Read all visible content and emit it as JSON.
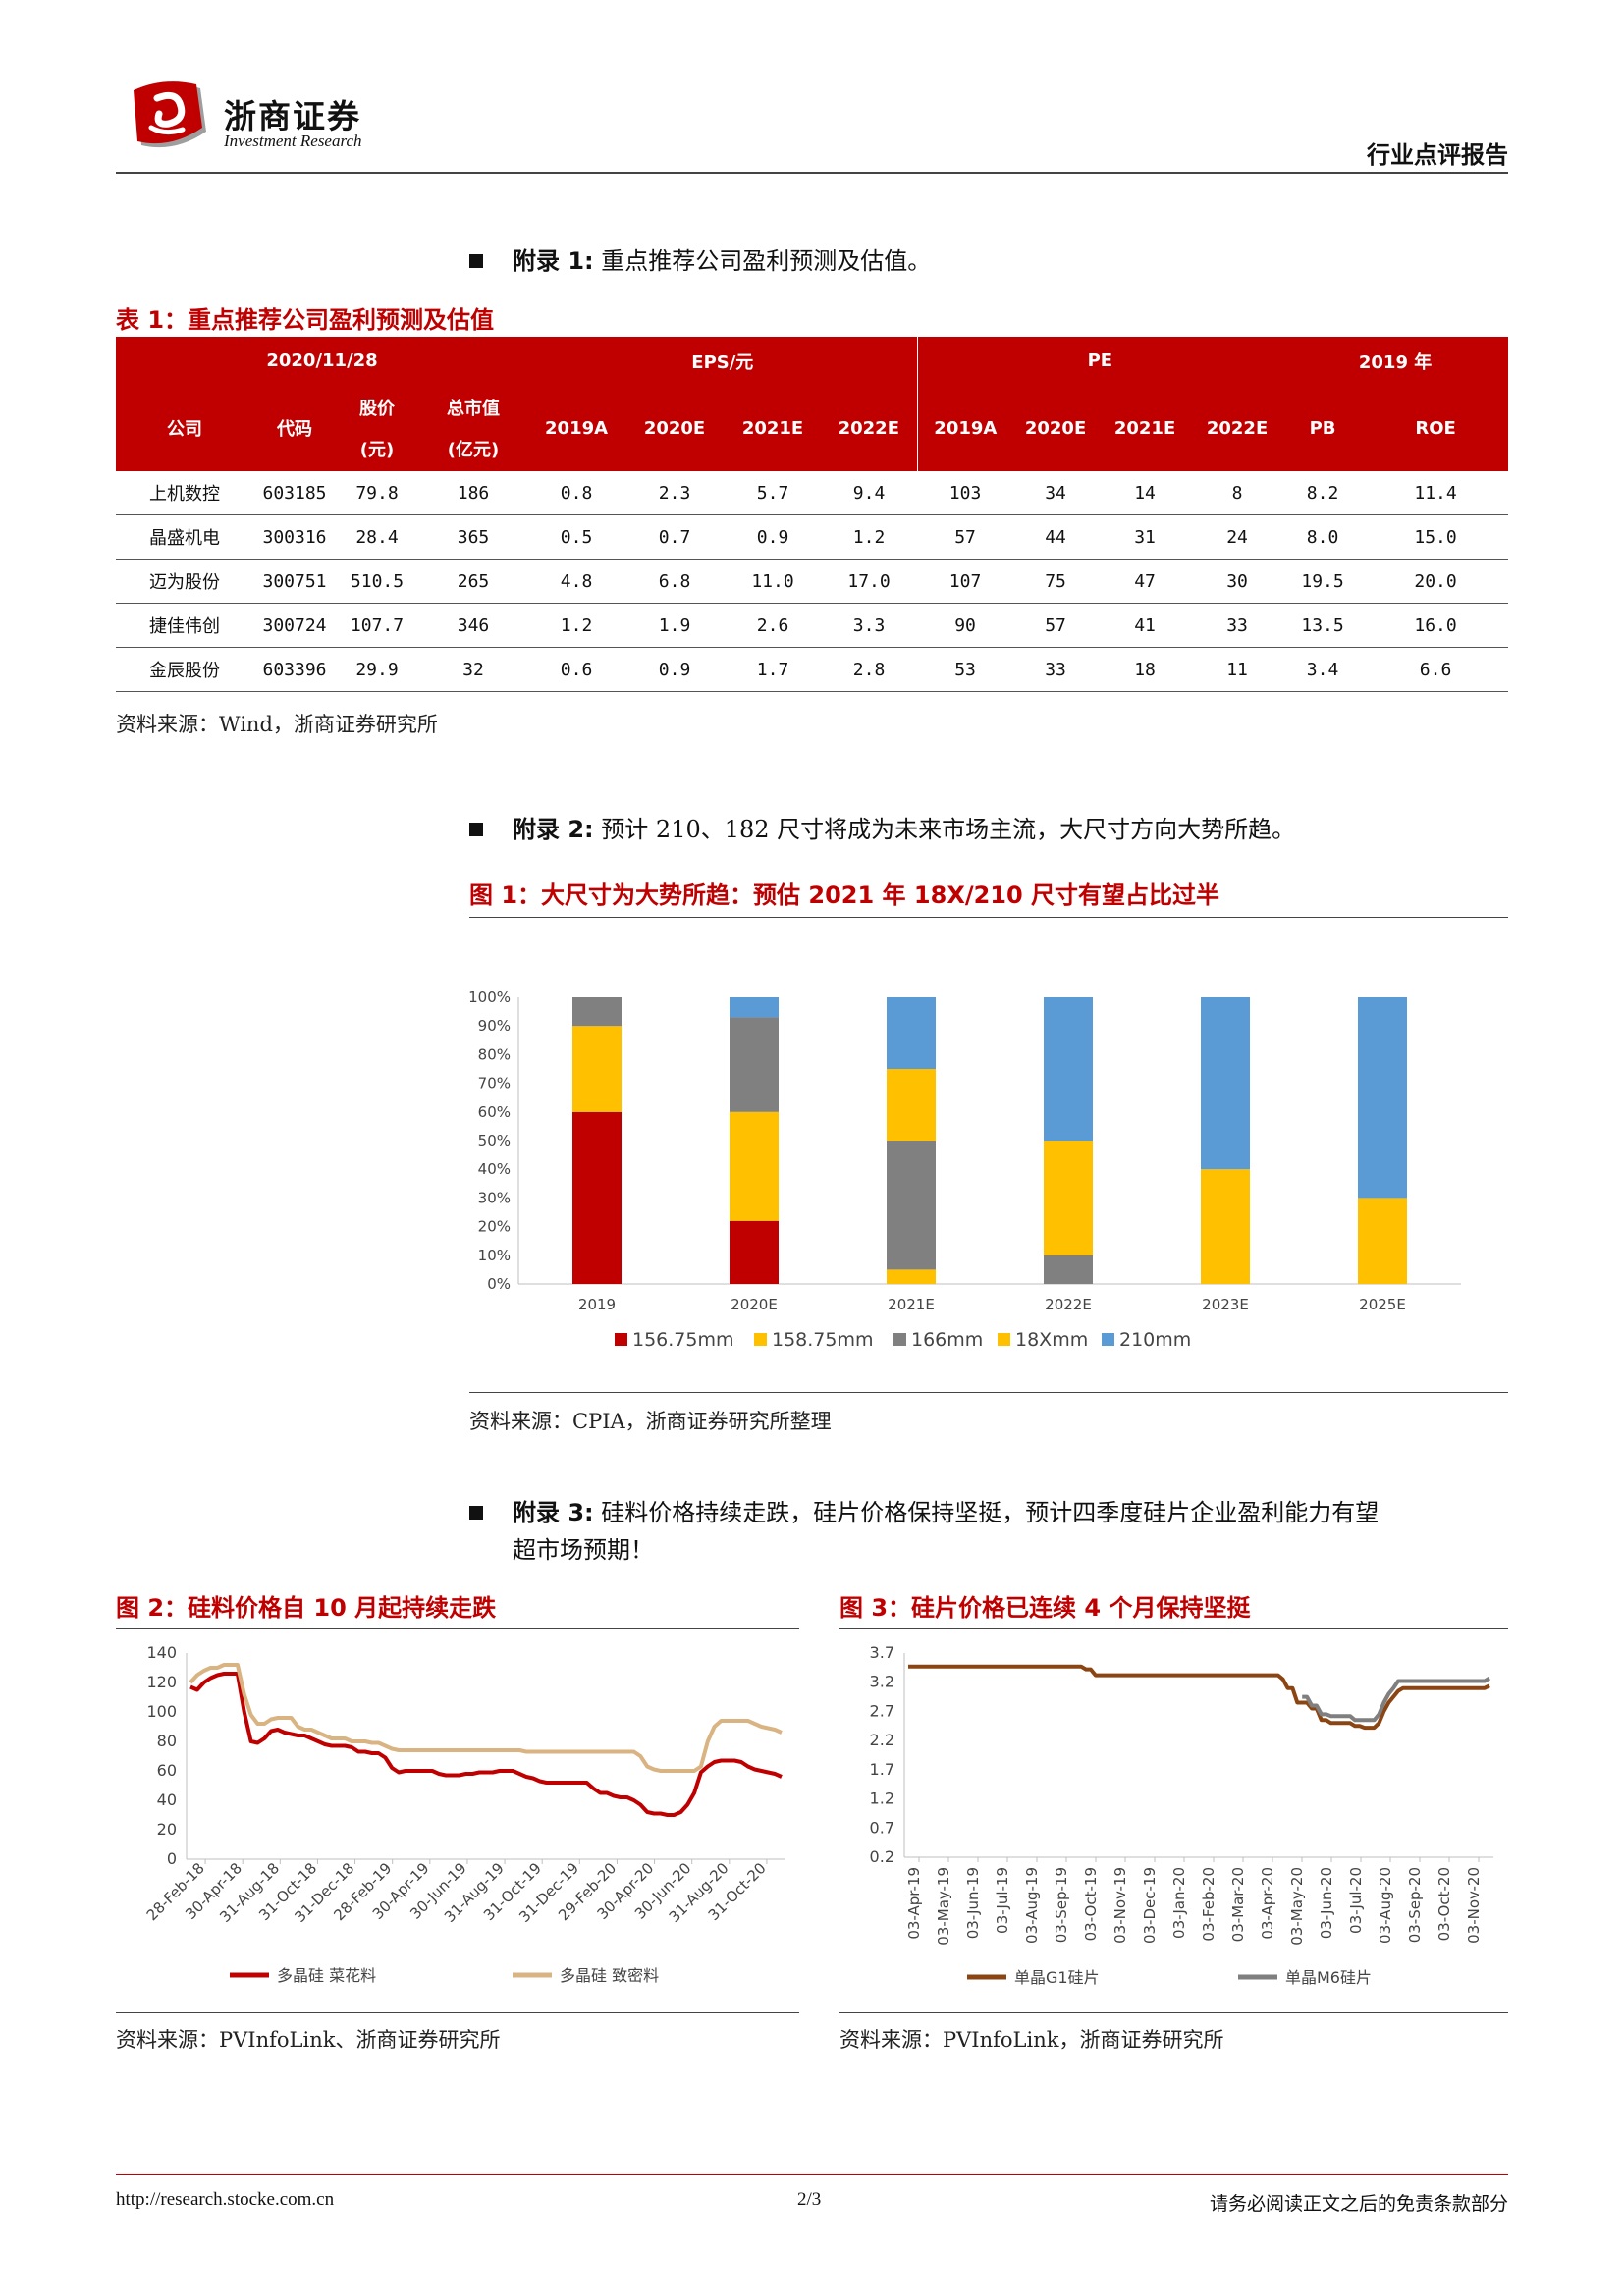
{
  "header": {
    "brand_cn": "浙商证券",
    "brand_en": "Investment Research",
    "doc_type": "行业点评报告"
  },
  "appendix1": {
    "label": "附录 1:",
    "text": "重点推荐公司盈利预测及估值。",
    "caption": "表 1：重点推荐公司盈利预测及估值",
    "source": "资料来源：Wind，浙商证券研究所",
    "table": {
      "group_date": "2020/11/28",
      "group_eps": "EPS/元",
      "group_pe": "PE",
      "group_2019": "2019 年",
      "cols": [
        "公司",
        "代码",
        "股价",
        "(元)",
        "总市值",
        "(亿元)",
        "2019A",
        "2020E",
        "2021E",
        "2022E",
        "2019A",
        "2020E",
        "2021E",
        "2022E",
        "PB",
        "ROE"
      ],
      "rows": [
        [
          "上机数控",
          "603185",
          "79.8",
          "186",
          "0.8",
          "2.3",
          "5.7",
          "9.4",
          "103",
          "34",
          "14",
          "8",
          "8.2",
          "11.4"
        ],
        [
          "晶盛机电",
          "300316",
          "28.4",
          "365",
          "0.5",
          "0.7",
          "0.9",
          "1.2",
          "57",
          "44",
          "31",
          "24",
          "8.0",
          "15.0"
        ],
        [
          "迈为股份",
          "300751",
          "510.5",
          "265",
          "4.8",
          "6.8",
          "11.0",
          "17.0",
          "107",
          "75",
          "47",
          "30",
          "19.5",
          "20.0"
        ],
        [
          "捷佳伟创",
          "300724",
          "107.7",
          "346",
          "1.2",
          "1.9",
          "2.6",
          "3.3",
          "90",
          "57",
          "41",
          "33",
          "13.5",
          "16.0"
        ],
        [
          "金辰股份",
          "603396",
          "29.9",
          "32",
          "0.6",
          "0.9",
          "1.7",
          "2.8",
          "53",
          "33",
          "18",
          "11",
          "3.4",
          "6.6"
        ]
      ]
    }
  },
  "appendix2": {
    "label": "附录 2:",
    "text": "预计 210、182 尺寸将成为未来市场主流，大尺寸方向大势所趋。",
    "caption": "图 1：大尺寸为大势所趋：预估 2021 年 18X/210 尺寸有望占比过半",
    "source": "资料来源：CPIA，浙商证券研究所整理"
  },
  "appendix3": {
    "label": "附录 3:",
    "text1": "硅料价格持续走跌，硅片价格保持坚挺，预计四季度硅片企业盈利能力有望",
    "text2": "超市场预期！",
    "caption_left": "图 2：硅料价格自 10 月起持续走跌",
    "caption_right": "图 3：硅片价格已连续 4 个月保持坚挺",
    "source_left": "资料来源：PVInfoLink、浙商证券研究所",
    "source_right": "资料来源：PVInfoLink，浙商证券研究所"
  },
  "chart_data": [
    {
      "type": "bar",
      "stacked": true,
      "categories": [
        "2019",
        "2020E",
        "2021E",
        "2022E",
        "2023E",
        "2025E"
      ],
      "y_ticks": [
        "0%",
        "10%",
        "20%",
        "30%",
        "40%",
        "50%",
        "60%",
        "70%",
        "80%",
        "90%",
        "100%"
      ],
      "ylim": [
        0,
        100
      ],
      "legend_position": "bottom",
      "series": [
        {
          "name": "156.75mm",
          "color": "#c00000",
          "values": [
            60,
            22,
            0,
            0,
            0,
            0
          ]
        },
        {
          "name": "158.75mm",
          "color": "#ffc000",
          "values": [
            30,
            38,
            5,
            0,
            0,
            0
          ]
        },
        {
          "name": "166mm",
          "color": "#808080",
          "values": [
            10,
            33,
            45,
            10,
            0,
            0
          ]
        },
        {
          "name": "18Xmm",
          "color": "#ffc000",
          "values": [
            0,
            0,
            25,
            40,
            40,
            30
          ]
        },
        {
          "name": "210mm",
          "color": "#5b9bd5",
          "values": [
            0,
            7,
            25,
            50,
            60,
            70
          ]
        }
      ]
    },
    {
      "type": "line",
      "ylim": [
        0,
        140
      ],
      "y_ticks": [
        "0",
        "20",
        "40",
        "60",
        "80",
        "100",
        "120",
        "140"
      ],
      "x_ticks": [
        "28-Feb-18",
        "30-Apr-18",
        "31-Aug-18",
        "31-Oct-18",
        "31-Dec-18",
        "28-Feb-19",
        "30-Apr-19",
        "30-Jun-19",
        "31-Aug-19",
        "31-Oct-19",
        "31-Dec-19",
        "29-Feb-20",
        "30-Apr-20",
        "30-Jun-20",
        "31-Aug-20",
        "31-Oct-20"
      ],
      "legend_position": "bottom",
      "series": [
        {
          "name": "多晶硅 菜花料",
          "color": "#c00000",
          "values": [
            117,
            115,
            120,
            123,
            125,
            126,
            126,
            126,
            100,
            80,
            79,
            82,
            87,
            88,
            86,
            85,
            84,
            84,
            82,
            80,
            78,
            77,
            77,
            77,
            76,
            73,
            73,
            72,
            72,
            69,
            62,
            59,
            60,
            60,
            60,
            60,
            60,
            58,
            57,
            57,
            57,
            58,
            58,
            59,
            59,
            59,
            60,
            60,
            60,
            58,
            56,
            55,
            53,
            52,
            52,
            52,
            52,
            52,
            52,
            52,
            48,
            45,
            45,
            43,
            42,
            42,
            40,
            37,
            32,
            31,
            31,
            30,
            30,
            32,
            37,
            45,
            59,
            63,
            66,
            67,
            67,
            67,
            66,
            63,
            61,
            60,
            59,
            58,
            56
          ]
        },
        {
          "name": "多晶硅 致密料",
          "color": "#d9b382",
          "values": [
            120,
            125,
            128,
            130,
            130,
            132,
            132,
            132,
            112,
            98,
            92,
            92,
            95,
            96,
            96,
            96,
            90,
            88,
            88,
            86,
            84,
            82,
            82,
            82,
            80,
            80,
            80,
            79,
            79,
            77,
            75,
            74,
            74,
            74,
            74,
            74,
            74,
            74,
            74,
            74,
            74,
            74,
            74,
            74,
            74,
            74,
            74,
            74,
            74,
            74,
            73,
            73,
            73,
            73,
            73,
            73,
            73,
            73,
            73,
            73,
            73,
            73,
            73,
            73,
            73,
            73,
            73,
            70,
            63,
            61,
            60,
            60,
            60,
            60,
            60,
            60,
            63,
            80,
            90,
            94,
            94,
            94,
            94,
            94,
            92,
            90,
            89,
            88,
            86
          ]
        }
      ]
    },
    {
      "type": "line",
      "ylim": [
        0.2,
        3.7
      ],
      "y_ticks": [
        "0.2",
        "0.7",
        "1.2",
        "1.7",
        "2.2",
        "2.7",
        "3.2",
        "3.7"
      ],
      "x_ticks": [
        "03-Apr-19",
        "03-May-19",
        "03-Jun-19",
        "03-Jul-19",
        "03-Aug-19",
        "03-Sep-19",
        "03-Oct-19",
        "03-Nov-19",
        "03-Dec-19",
        "03-Jan-20",
        "03-Feb-20",
        "03-Mar-20",
        "03-Apr-20",
        "03-May-20",
        "03-Jun-20",
        "03-Jul-20",
        "03-Aug-20",
        "03-Sep-20",
        "03-Oct-20",
        "03-Nov-20"
      ],
      "legend_position": "bottom",
      "series": [
        {
          "name": "单晶G1硅片",
          "color": "#8b4513",
          "values": [
            3.47,
            3.47,
            3.47,
            3.47,
            3.47,
            3.47,
            3.47,
            3.47,
            3.47,
            3.47,
            3.47,
            3.47,
            3.47,
            3.47,
            3.47,
            3.47,
            3.47,
            3.47,
            3.47,
            3.47,
            3.47,
            3.47,
            3.47,
            3.47,
            3.47,
            3.47,
            3.47,
            3.47,
            3.47,
            3.47,
            3.47,
            3.47,
            3.47,
            3.47,
            3.47,
            3.47,
            3.47,
            3.42,
            3.42,
            3.32,
            3.32,
            3.32,
            3.32,
            3.32,
            3.32,
            3.32,
            3.32,
            3.32,
            3.32,
            3.32,
            3.32,
            3.32,
            3.32,
            3.32,
            3.32,
            3.32,
            3.32,
            3.32,
            3.32,
            3.32,
            3.32,
            3.32,
            3.32,
            3.32,
            3.32,
            3.32,
            3.32,
            3.32,
            3.32,
            3.32,
            3.32,
            3.32,
            3.32,
            3.32,
            3.32,
            3.32,
            3.32,
            3.32,
            3.25,
            3.1,
            3.1,
            2.85,
            2.85,
            2.85,
            2.75,
            2.75,
            2.55,
            2.55,
            2.5,
            2.5,
            2.5,
            2.5,
            2.5,
            2.45,
            2.45,
            2.42,
            2.42,
            2.42,
            2.5,
            2.7,
            2.85,
            2.95,
            3.05,
            3.1,
            3.1,
            3.1,
            3.1,
            3.1,
            3.1,
            3.1,
            3.1,
            3.1,
            3.1,
            3.1,
            3.1,
            3.1,
            3.1,
            3.1,
            3.1,
            3.1,
            3.1,
            3.14
          ]
        },
        {
          "name": "单晶M6硅片",
          "color": "#7f7f7f",
          "values": [
            null,
            null,
            null,
            null,
            null,
            null,
            null,
            null,
            null,
            null,
            null,
            null,
            null,
            null,
            null,
            null,
            null,
            null,
            null,
            null,
            null,
            null,
            null,
            null,
            null,
            null,
            null,
            null,
            null,
            null,
            null,
            null,
            null,
            null,
            null,
            null,
            null,
            null,
            null,
            null,
            null,
            null,
            null,
            null,
            null,
            null,
            null,
            null,
            null,
            null,
            null,
            null,
            null,
            null,
            null,
            null,
            null,
            null,
            null,
            null,
            null,
            null,
            null,
            null,
            null,
            null,
            null,
            null,
            null,
            null,
            null,
            null,
            null,
            null,
            null,
            null,
            null,
            null,
            null,
            null,
            null,
            null,
            2.95,
            2.95,
            2.8,
            2.8,
            2.65,
            2.65,
            2.62,
            2.62,
            2.62,
            2.62,
            2.62,
            2.55,
            2.55,
            2.55,
            2.55,
            2.55,
            2.65,
            2.85,
            3.0,
            3.1,
            3.22,
            3.22,
            3.22,
            3.22,
            3.22,
            3.22,
            3.22,
            3.22,
            3.22,
            3.22,
            3.22,
            3.22,
            3.22,
            3.22,
            3.22,
            3.22,
            3.22,
            3.22,
            3.22,
            3.27
          ]
        }
      ]
    }
  ],
  "footer": {
    "url": "http://research.stocke.com.cn",
    "page": "2/3",
    "disclaimer": "请务必阅读正文之后的免责条款部分"
  }
}
